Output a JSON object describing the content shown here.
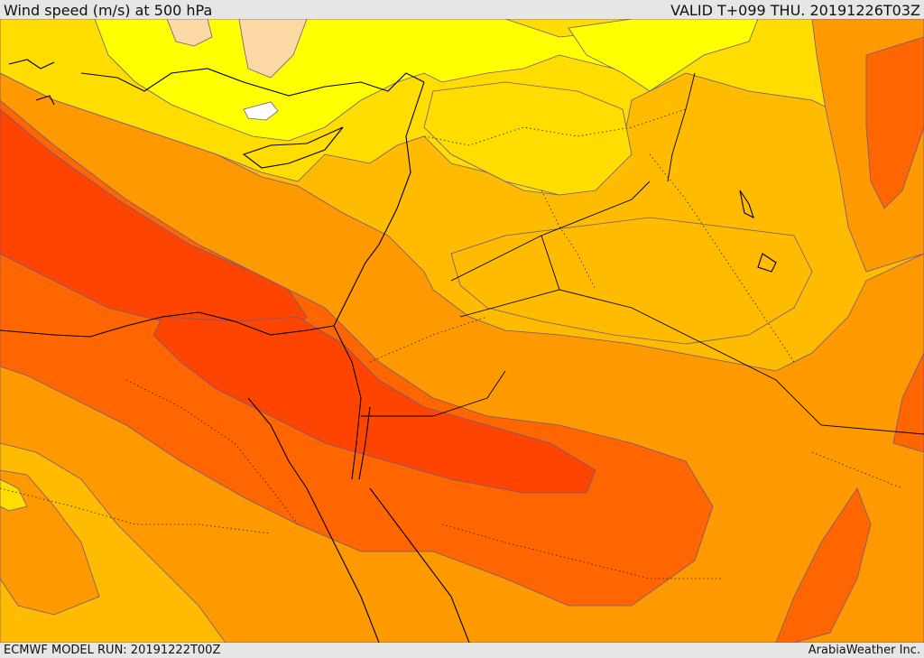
{
  "header": {
    "title": "Wind speed (m/s) at 500 hPa",
    "valid": "VALID T+099 THU. 20191226T03Z"
  },
  "footer": {
    "model_run": "ECMWF MODEL RUN: 20191222T00Z",
    "credit": "ArabiaWeather Inc."
  },
  "palette": {
    "very_light": "#ffffff",
    "light_tan": "#fcd9a4",
    "yellow": "#ffff00",
    "gold": "#ffdd00",
    "light_orange": "#ffbb00",
    "orange": "#ff9900",
    "dark_orange": "#ff6600",
    "red_orange": "#ff4400",
    "contour": "#6b5a8e",
    "coast": "#000000"
  }
}
